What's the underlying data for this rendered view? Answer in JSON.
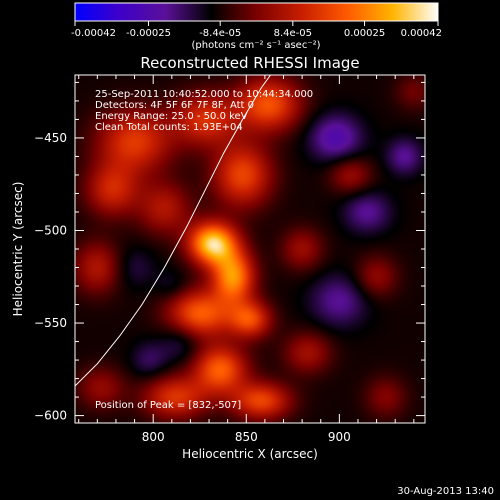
{
  "chart_data": {
    "type": "heatmap",
    "title": "Reconstructed RHESSI Image",
    "xlabel": "Heliocentric X (arcsec)",
    "ylabel": "Heliocentric Y (arcsec)",
    "xlim": [
      758,
      946
    ],
    "ylim": [
      -604,
      -416
    ],
    "x_ticks": [
      800,
      850,
      900
    ],
    "y_ticks": [
      -450,
      -500,
      -550,
      -600
    ],
    "colorbar": {
      "range": [
        -0.00042,
        0.00042
      ],
      "tick_values": [
        -0.00042,
        -0.00025,
        -8.4e-05,
        8.4e-05,
        0.00025,
        0.00042
      ],
      "tick_labels": [
        "-0.00042",
        "-0.00025",
        "-8.4e-05",
        "8.4e-05",
        "0.00025",
        "0.00042"
      ],
      "unit_label": "(photons cm⁻² s⁻¹ asec⁻²)",
      "colormap": [
        "#0000ff",
        "#3f00c8",
        "#5a1098",
        "#000000",
        "#7a0000",
        "#c81e00",
        "#ff5a00",
        "#ffb400",
        "#ffffff"
      ]
    },
    "annotations": [
      "25-Sep-2011 10:40:52.000 to 10:44:34.000",
      "Detectors: 4F 5F 6F 7F 8F, Att 0",
      "Energy Range: 25.0 - 50.0 keV",
      "Clean    Total counts: 1.93E+04"
    ],
    "peak_label": "Position of Peak = [832,-507]",
    "peak": [
      832,
      -507
    ],
    "sources": [
      {
        "x": 832,
        "y": -507,
        "sx": 9,
        "sy": 8,
        "amp": 0.00045
      },
      {
        "x": 843,
        "y": -525,
        "sx": 8,
        "sy": 10,
        "amp": 0.00036
      },
      {
        "x": 825,
        "y": -545,
        "sx": 12,
        "sy": 9,
        "amp": 0.0003
      },
      {
        "x": 852,
        "y": -548,
        "sx": 8,
        "sy": 7,
        "amp": 0.00026
      },
      {
        "x": 836,
        "y": -575,
        "sx": 10,
        "sy": 9,
        "amp": 0.0003
      },
      {
        "x": 858,
        "y": -592,
        "sx": 11,
        "sy": 7,
        "amp": 0.00026
      },
      {
        "x": 812,
        "y": -590,
        "sx": 12,
        "sy": 8,
        "amp": 0.00023
      },
      {
        "x": 848,
        "y": -470,
        "sx": 11,
        "sy": 12,
        "amp": 0.00026
      },
      {
        "x": 862,
        "y": -432,
        "sx": 12,
        "sy": 10,
        "amp": 0.00028
      },
      {
        "x": 828,
        "y": -440,
        "sx": 12,
        "sy": 10,
        "amp": 0.00022
      },
      {
        "x": 790,
        "y": -452,
        "sx": 14,
        "sy": 12,
        "amp": 0.00024
      },
      {
        "x": 778,
        "y": -478,
        "sx": 10,
        "sy": 10,
        "amp": 0.0002
      },
      {
        "x": 806,
        "y": -488,
        "sx": 10,
        "sy": 10,
        "amp": 0.00016
      },
      {
        "x": 770,
        "y": -520,
        "sx": 9,
        "sy": 10,
        "amp": 0.00016
      },
      {
        "x": 772,
        "y": -585,
        "sx": 9,
        "sy": 8,
        "amp": 0.00012
      },
      {
        "x": 880,
        "y": -510,
        "sx": 8,
        "sy": 8,
        "amp": 0.00013
      },
      {
        "x": 883,
        "y": -566,
        "sx": 9,
        "sy": 8,
        "amp": 0.00014
      },
      {
        "x": 906,
        "y": -470,
        "sx": 8,
        "sy": 7,
        "amp": 0.00013
      },
      {
        "x": 920,
        "y": -525,
        "sx": 8,
        "sy": 8,
        "amp": 0.00012
      },
      {
        "x": 925,
        "y": -590,
        "sx": 8,
        "sy": 8,
        "amp": 0.0001
      },
      {
        "x": 940,
        "y": -425,
        "sx": 7,
        "sy": 7,
        "amp": 8e-05
      },
      {
        "x": 898,
        "y": -450,
        "sx": 10,
        "sy": 9,
        "amp": -0.00016
      },
      {
        "x": 915,
        "y": -490,
        "sx": 9,
        "sy": 8,
        "amp": -0.00012
      },
      {
        "x": 900,
        "y": -538,
        "sx": 11,
        "sy": 10,
        "amp": -0.00012
      },
      {
        "x": 935,
        "y": -460,
        "sx": 7,
        "sy": 7,
        "amp": -0.00012
      },
      {
        "x": 790,
        "y": -520,
        "sx": 8,
        "sy": 8,
        "amp": -6e-05
      },
      {
        "x": 810,
        "y": -530,
        "sx": 6,
        "sy": 6,
        "amp": -5e-05
      },
      {
        "x": 815,
        "y": -560,
        "sx": 8,
        "sy": 8,
        "amp": -8e-05
      },
      {
        "x": 798,
        "y": -570,
        "sx": 7,
        "sy": 7,
        "amp": -8e-05
      }
    ],
    "background_level": -9e-05,
    "limb_curve": [
      [
        758,
        -584
      ],
      [
        770,
        -572
      ],
      [
        782,
        -557
      ],
      [
        794,
        -540
      ],
      [
        806,
        -520
      ],
      [
        818,
        -498
      ],
      [
        828,
        -478
      ],
      [
        838,
        -458
      ],
      [
        848,
        -440
      ],
      [
        858,
        -423
      ],
      [
        863,
        -416
      ]
    ],
    "grid": false,
    "legend": "none"
  },
  "footer": {
    "timestamp": "30-Aug-2013 13:40"
  }
}
